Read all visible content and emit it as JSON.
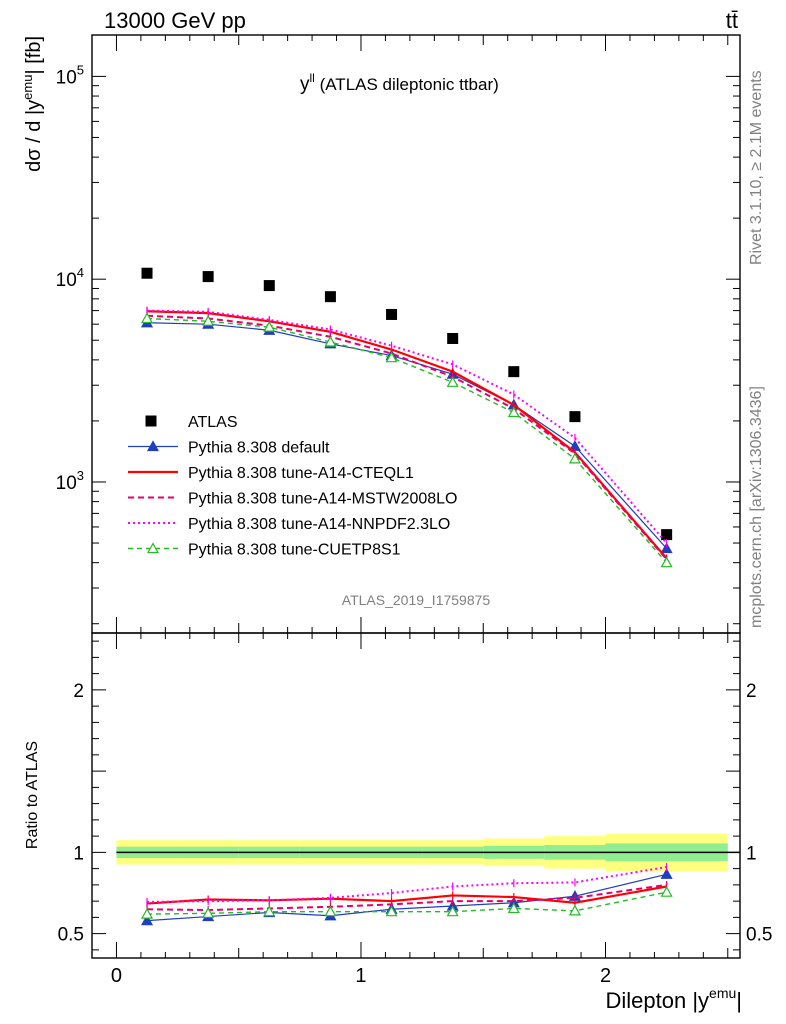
{
  "header": {
    "left": "13000 GeV pp",
    "right": "tt̄"
  },
  "side_text": {
    "rivet_a": "Rivet 3.1.10, ",
    "rivet_b": "≥ 2.1M events",
    "mcplots": "mcplots.cern.ch [arXiv:1306.3436]"
  },
  "plot_title": {
    "main": "y",
    "sup": "ll",
    "rest": " (ATLAS dileptonic ttbar)"
  },
  "analysis_id": "ATLAS_2019_I1759875",
  "colors": {
    "data": "#000000",
    "default": "#1f3fbf",
    "cteql1": "#ff0000",
    "mstw": "#e6006e",
    "nnpdf": "#ff00ff",
    "cuetp8s1": "#22bb22",
    "band_inner": "#90ee90",
    "band_outer": "#ffff80",
    "side_text": "#808080"
  },
  "chart_data": [
    {
      "type": "line",
      "scale": "log",
      "ylabel": {
        "main": "dσ / d |y",
        "sup": "emu",
        "end": "| [fb]"
      },
      "xlim": [
        -0.1,
        2.55
      ],
      "ylim": [
        180,
        160000
      ],
      "yticks": [
        {
          "value": 1000,
          "base": "10",
          "exp": "3"
        },
        {
          "value": 10000,
          "base": "10",
          "exp": "4"
        },
        {
          "value": 100000,
          "base": "10",
          "exp": "5"
        }
      ],
      "x": [
        0.125,
        0.375,
        0.625,
        0.875,
        1.125,
        1.375,
        1.625,
        1.875,
        2.25
      ],
      "series": [
        {
          "name": "ATLAS",
          "key": "data",
          "values": [
            10700,
            10300,
            9300,
            8200,
            6700,
            5100,
            3500,
            2100,
            550
          ]
        },
        {
          "name": "Pythia 8.308 default",
          "key": "default",
          "values": [
            6100,
            6000,
            5600,
            4800,
            4200,
            3400,
            2400,
            1500,
            470
          ]
        },
        {
          "name": "Pythia 8.308 tune-A14-CTEQL1",
          "key": "cteql1",
          "values": [
            6950,
            6800,
            6200,
            5500,
            4500,
            3500,
            2400,
            1400,
            420
          ]
        },
        {
          "name": "Pythia 8.308 tune-A14-MSTW2008LO",
          "key": "mstw",
          "values": [
            6600,
            6400,
            5900,
            5200,
            4300,
            3300,
            2300,
            1380,
            415
          ]
        },
        {
          "name": "Pythia 8.308 tune-A14-NNPDF2.3LO",
          "key": "nnpdf",
          "values": [
            7000,
            6900,
            6300,
            5650,
            4700,
            3800,
            2700,
            1650,
            500
          ]
        },
        {
          "name": "Pythia 8.308 tune-CUETP8S1",
          "key": "cuetp8s1",
          "values": [
            6400,
            6200,
            5800,
            4900,
            4100,
            3100,
            2200,
            1300,
            400
          ]
        }
      ]
    },
    {
      "type": "line",
      "ylabel": "Ratio to ATLAS",
      "xlabel": {
        "main": "Dilepton |y",
        "sup": "emu",
        "end": "|"
      },
      "xlim": [
        -0.1,
        2.55
      ],
      "ylim": [
        0.35,
        2.35
      ],
      "xticks": [
        {
          "value": 0,
          "label": "0"
        },
        {
          "value": 1,
          "label": "1"
        },
        {
          "value": 2,
          "label": "2"
        }
      ],
      "yticks": [
        {
          "value": 0.5,
          "label": "0.5"
        },
        {
          "value": 1,
          "label": "1"
        },
        {
          "value": 2,
          "label": "2"
        }
      ],
      "band_edges": [
        0,
        0.25,
        0.5,
        0.75,
        1.0,
        1.25,
        1.5,
        1.75,
        2.0,
        2.5
      ],
      "band_inner": [
        0.035,
        0.035,
        0.035,
        0.035,
        0.035,
        0.035,
        0.04,
        0.045,
        0.055
      ],
      "band_outer": [
        0.075,
        0.075,
        0.075,
        0.075,
        0.075,
        0.075,
        0.085,
        0.1,
        0.115
      ],
      "x": [
        0.125,
        0.375,
        0.625,
        0.875,
        1.125,
        1.375,
        1.625,
        1.875,
        2.25
      ],
      "series": [
        {
          "name": "Pythia 8.308 default",
          "key": "default",
          "values": [
            0.58,
            0.605,
            0.63,
            0.61,
            0.65,
            0.67,
            0.69,
            0.73,
            0.865
          ]
        },
        {
          "name": "Pythia 8.308 tune-A14-CTEQL1",
          "key": "cteql1",
          "values": [
            0.685,
            0.71,
            0.705,
            0.715,
            0.7,
            0.735,
            0.725,
            0.69,
            0.79
          ]
        },
        {
          "name": "Pythia 8.308 tune-A14-MSTW2008LO",
          "key": "mstw",
          "values": [
            0.65,
            0.645,
            0.655,
            0.665,
            0.68,
            0.7,
            0.7,
            0.72,
            0.8
          ]
        },
        {
          "name": "Pythia 8.308 tune-A14-NNPDF2.3LO",
          "key": "nnpdf",
          "values": [
            0.695,
            0.7,
            0.705,
            0.72,
            0.75,
            0.79,
            0.81,
            0.815,
            0.91
          ]
        },
        {
          "name": "Pythia 8.308 tune-CUETP8S1",
          "key": "cuetp8s1",
          "values": [
            0.62,
            0.625,
            0.635,
            0.635,
            0.635,
            0.635,
            0.655,
            0.64,
            0.755
          ]
        }
      ]
    }
  ]
}
